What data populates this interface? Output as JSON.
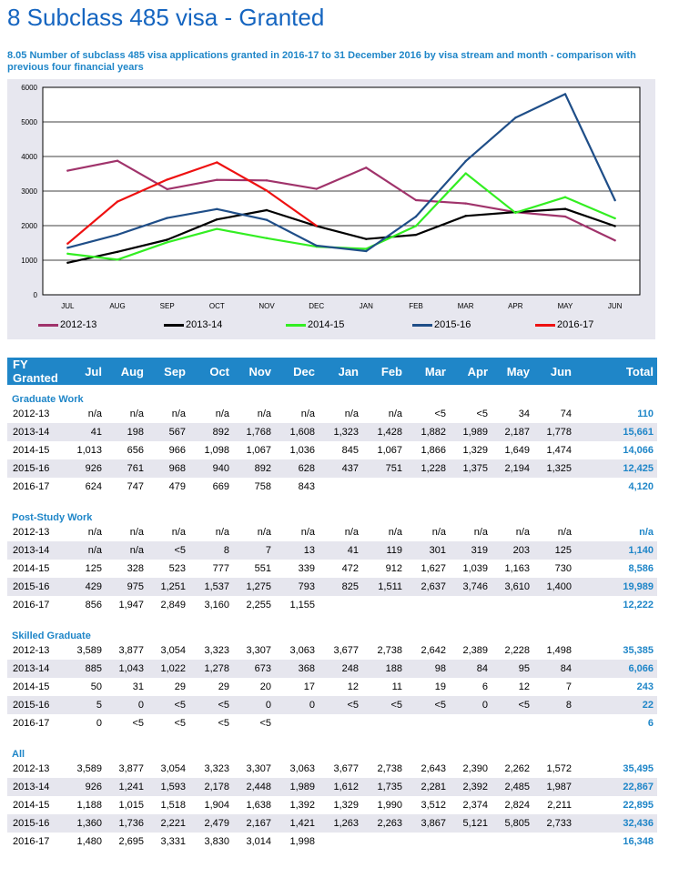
{
  "page": {
    "title": "8 Subclass 485 visa - Granted",
    "subtitle": "8.05 Number of subclass 485 visa applications granted in 2016-17 to 31 December 2016 by visa stream and month - comparison with previous four financial years"
  },
  "chart_data": {
    "type": "line",
    "categories": [
      "JUL",
      "AUG",
      "SEP",
      "OCT",
      "NOV",
      "DEC",
      "JAN",
      "FEB",
      "MAR",
      "APR",
      "MAY",
      "JUN"
    ],
    "ylim": [
      0,
      6000
    ],
    "yticks": [
      "0",
      "1000",
      "2000",
      "3000",
      "4000",
      "5000",
      "6000"
    ],
    "grid": true,
    "legend_position": "bottom",
    "series": [
      {
        "name": "2012-13",
        "color": "#a0336b",
        "values": [
          3589,
          3877,
          3054,
          3323,
          3307,
          3063,
          3677,
          2738,
          2643,
          2390,
          2262,
          1572
        ]
      },
      {
        "name": "2013-14",
        "color": "#000000",
        "values": [
          926,
          1241,
          1593,
          2178,
          2448,
          1989,
          1612,
          1735,
          2281,
          2392,
          2485,
          1987
        ]
      },
      {
        "name": "2014-15",
        "color": "#33ee22",
        "values": [
          1188,
          1015,
          1518,
          1904,
          1638,
          1392,
          1329,
          1990,
          3512,
          2374,
          2824,
          2211
        ]
      },
      {
        "name": "2015-16",
        "color": "#1f4e88",
        "values": [
          1360,
          1736,
          2221,
          2479,
          2167,
          1421,
          1263,
          2263,
          3867,
          5121,
          5805,
          2733
        ]
      },
      {
        "name": "2016-17",
        "color": "#ee1111",
        "values": [
          1480,
          2695,
          3331,
          3830,
          3014,
          1998,
          null,
          null,
          null,
          null,
          null,
          null
        ]
      }
    ]
  },
  "table": {
    "headers": [
      "FY Granted",
      "Jul",
      "Aug",
      "Sep",
      "Oct",
      "Nov",
      "Dec",
      "Jan",
      "Feb",
      "Mar",
      "Apr",
      "May",
      "Jun",
      "Total"
    ],
    "sections": [
      {
        "title": "Graduate Work",
        "rows": [
          [
            "2012-13",
            "n/a",
            "n/a",
            "n/a",
            "n/a",
            "n/a",
            "n/a",
            "n/a",
            "n/a",
            "<5",
            "<5",
            "34",
            "74",
            "110"
          ],
          [
            "2013-14",
            "41",
            "198",
            "567",
            "892",
            "1,768",
            "1,608",
            "1,323",
            "1,428",
            "1,882",
            "1,989",
            "2,187",
            "1,778",
            "15,661"
          ],
          [
            "2014-15",
            "1,013",
            "656",
            "966",
            "1,098",
            "1,067",
            "1,036",
            "845",
            "1,067",
            "1,866",
            "1,329",
            "1,649",
            "1,474",
            "14,066"
          ],
          [
            "2015-16",
            "926",
            "761",
            "968",
            "940",
            "892",
            "628",
            "437",
            "751",
            "1,228",
            "1,375",
            "2,194",
            "1,325",
            "12,425"
          ],
          [
            "2016-17",
            "624",
            "747",
            "479",
            "669",
            "758",
            "843",
            "",
            "",
            "",
            "",
            "",
            "",
            "4,120"
          ]
        ]
      },
      {
        "title": "Post-Study Work",
        "rows": [
          [
            "2012-13",
            "n/a",
            "n/a",
            "n/a",
            "n/a",
            "n/a",
            "n/a",
            "n/a",
            "n/a",
            "n/a",
            "n/a",
            "n/a",
            "n/a",
            "n/a"
          ],
          [
            "2013-14",
            "n/a",
            "n/a",
            "<5",
            "8",
            "7",
            "13",
            "41",
            "119",
            "301",
            "319",
            "203",
            "125",
            "1,140"
          ],
          [
            "2014-15",
            "125",
            "328",
            "523",
            "777",
            "551",
            "339",
            "472",
            "912",
            "1,627",
            "1,039",
            "1,163",
            "730",
            "8,586"
          ],
          [
            "2015-16",
            "429",
            "975",
            "1,251",
            "1,537",
            "1,275",
            "793",
            "825",
            "1,511",
            "2,637",
            "3,746",
            "3,610",
            "1,400",
            "19,989"
          ],
          [
            "2016-17",
            "856",
            "1,947",
            "2,849",
            "3,160",
            "2,255",
            "1,155",
            "",
            "",
            "",
            "",
            "",
            "",
            "12,222"
          ]
        ]
      },
      {
        "title": "Skilled Graduate",
        "rows": [
          [
            "2012-13",
            "3,589",
            "3,877",
            "3,054",
            "3,323",
            "3,307",
            "3,063",
            "3,677",
            "2,738",
            "2,642",
            "2,389",
            "2,228",
            "1,498",
            "35,385"
          ],
          [
            "2013-14",
            "885",
            "1,043",
            "1,022",
            "1,278",
            "673",
            "368",
            "248",
            "188",
            "98",
            "84",
            "95",
            "84",
            "6,066"
          ],
          [
            "2014-15",
            "50",
            "31",
            "29",
            "29",
            "20",
            "17",
            "12",
            "11",
            "19",
            "6",
            "12",
            "7",
            "243"
          ],
          [
            "2015-16",
            "5",
            "0",
            "<5",
            "<5",
            "0",
            "0",
            "<5",
            "<5",
            "<5",
            "0",
            "<5",
            "8",
            "22"
          ],
          [
            "2016-17",
            "0",
            "<5",
            "<5",
            "<5",
            "<5",
            "",
            "",
            "",
            "",
            "",
            "",
            "",
            "6"
          ]
        ]
      },
      {
        "title": "All",
        "rows": [
          [
            "2012-13",
            "3,589",
            "3,877",
            "3,054",
            "3,323",
            "3,307",
            "3,063",
            "3,677",
            "2,738",
            "2,643",
            "2,390",
            "2,262",
            "1,572",
            "35,495"
          ],
          [
            "2013-14",
            "926",
            "1,241",
            "1,593",
            "2,178",
            "2,448",
            "1,989",
            "1,612",
            "1,735",
            "2,281",
            "2,392",
            "2,485",
            "1,987",
            "22,867"
          ],
          [
            "2014-15",
            "1,188",
            "1,015",
            "1,518",
            "1,904",
            "1,638",
            "1,392",
            "1,329",
            "1,990",
            "3,512",
            "2,374",
            "2,824",
            "2,211",
            "22,895"
          ],
          [
            "2015-16",
            "1,360",
            "1,736",
            "2,221",
            "2,479",
            "2,167",
            "1,421",
            "1,263",
            "2,263",
            "3,867",
            "5,121",
            "5,805",
            "2,733",
            "32,436"
          ],
          [
            "2016-17",
            "1,480",
            "2,695",
            "3,331",
            "3,830",
            "3,014",
            "1,998",
            "",
            "",
            "",
            "",
            "",
            "",
            "16,348"
          ]
        ]
      }
    ]
  }
}
